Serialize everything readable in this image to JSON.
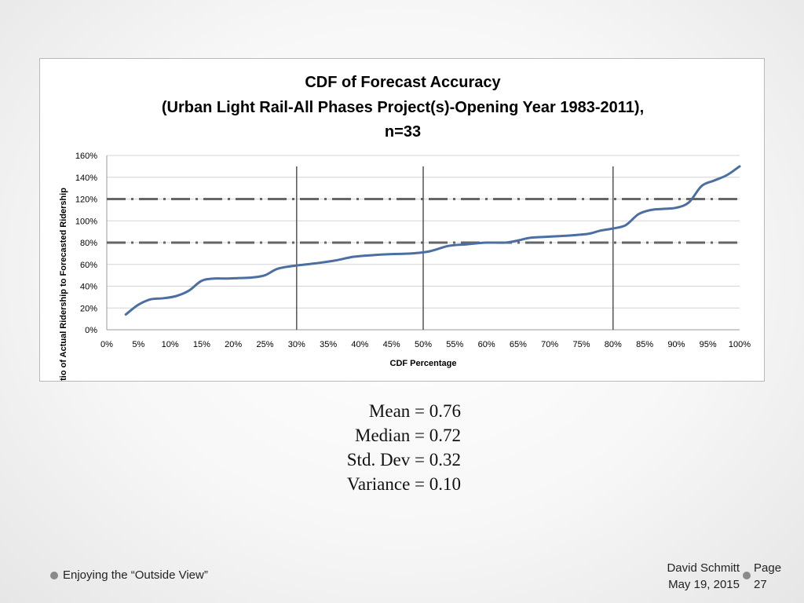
{
  "chart_data": {
    "type": "line",
    "title_lines": [
      "CDF of Forecast Accuracy",
      "(Urban Light Rail-All Phases Project(s)-Opening Year 1983-2011),",
      "n=33"
    ],
    "xlabel": "CDF Percentage",
    "ylabel": "atio of Actual Ridership to Forecasted Ridership",
    "xlim": [
      0,
      100
    ],
    "ylim": [
      0,
      160
    ],
    "x_ticks": [
      "0%",
      "5%",
      "10%",
      "15%",
      "20%",
      "25%",
      "30%",
      "35%",
      "40%",
      "45%",
      "50%",
      "55%",
      "60%",
      "65%",
      "70%",
      "75%",
      "80%",
      "85%",
      "90%",
      "95%",
      "100%"
    ],
    "y_ticks": [
      "0%",
      "20%",
      "40%",
      "60%",
      "80%",
      "100%",
      "120%",
      "140%",
      "160%"
    ],
    "grid": "horizontal",
    "vertical_markers": [
      30,
      50,
      80
    ],
    "reference_lines": [
      80,
      120
    ],
    "series": [
      {
        "name": "Ratio of Actual Ridership to Forecasted Ridership",
        "color": "#4a6fa0",
        "x": [
          3,
          5,
          7,
          9,
          11,
          13,
          15,
          17,
          19,
          21,
          23,
          25,
          27,
          30,
          33,
          36,
          39,
          42,
          45,
          48,
          51,
          54,
          57,
          60,
          63,
          65,
          67,
          70,
          73,
          76,
          78,
          80,
          82,
          84,
          86,
          88,
          90,
          92,
          94,
          96,
          98,
          100
        ],
        "y": [
          14,
          23,
          28,
          29,
          31,
          36,
          45,
          47,
          47,
          47.5,
          48,
          50,
          56,
          59,
          61,
          63.5,
          67,
          68.5,
          69.5,
          70,
          72,
          77,
          78.5,
          80,
          80,
          82,
          84.5,
          85.5,
          86.5,
          88,
          91,
          93,
          96,
          106,
          110,
          111,
          112,
          117,
          132,
          137,
          142,
          150
        ]
      }
    ]
  },
  "stats": {
    "mean": "Mean = 0.76",
    "median": "Median = 0.72",
    "std_dev": "Std. Dev = 0.32",
    "variance": "Variance = 0.10"
  },
  "footer": {
    "left": "Enjoying the “Outside View”",
    "author": "David Schmitt",
    "date": "May 19, 2015",
    "page_label": "Page",
    "page_number": "27"
  }
}
